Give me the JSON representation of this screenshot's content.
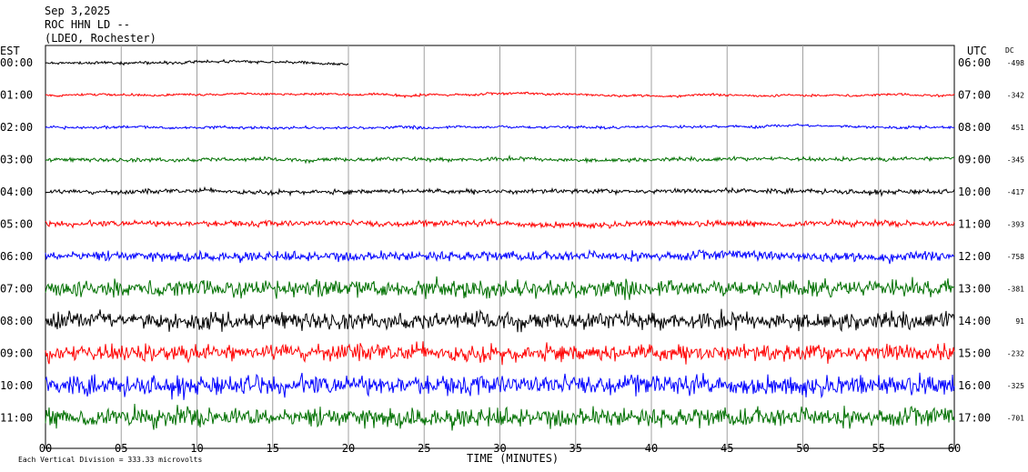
{
  "header": {
    "date": "Sep 3,2025",
    "station": "ROC HHN LD --",
    "location": "(LDEO, Rochester)"
  },
  "axis_labels": {
    "left_tz": "EST",
    "right_tz": "UTC",
    "dc": "DC",
    "xlabel": "TIME (MINUTES)",
    "scale_note": "Each Vertical Division = 333.33 microvolts"
  },
  "colors": {
    "black": "#000000",
    "red": "#ff0000",
    "blue": "#0000ff",
    "green": "#007000",
    "grid": "#a0a0a0"
  },
  "chart_data": {
    "type": "line",
    "xlim": [
      0,
      60
    ],
    "x_ticks": [
      "00",
      "05",
      "10",
      "15",
      "20",
      "25",
      "30",
      "35",
      "40",
      "45",
      "50",
      "55",
      "60"
    ],
    "rows": [
      {
        "est": "00:00",
        "utc": "06:00",
        "dc": "-498",
        "color": "black",
        "noise": 0.07,
        "end_minute": 20
      },
      {
        "est": "01:00",
        "utc": "07:00",
        "dc": "-342",
        "color": "red",
        "noise": 0.06,
        "end_minute": 60
      },
      {
        "est": "02:00",
        "utc": "08:00",
        "dc": "451",
        "color": "blue",
        "noise": 0.07,
        "end_minute": 60
      },
      {
        "est": "03:00",
        "utc": "09:00",
        "dc": "-345",
        "color": "green",
        "noise": 0.1,
        "end_minute": 60
      },
      {
        "est": "04:00",
        "utc": "10:00",
        "dc": "-417",
        "color": "black",
        "noise": 0.12,
        "end_minute": 60
      },
      {
        "est": "05:00",
        "utc": "11:00",
        "dc": "-393",
        "color": "red",
        "noise": 0.15,
        "end_minute": 60
      },
      {
        "est": "06:00",
        "utc": "12:00",
        "dc": "-758",
        "color": "blue",
        "noise": 0.25,
        "end_minute": 60
      },
      {
        "est": "07:00",
        "utc": "13:00",
        "dc": "-381",
        "color": "green",
        "noise": 0.45,
        "end_minute": 60
      },
      {
        "est": "08:00",
        "utc": "14:00",
        "dc": "91",
        "color": "black",
        "noise": 0.45,
        "end_minute": 60
      },
      {
        "est": "09:00",
        "utc": "15:00",
        "dc": "-232",
        "color": "red",
        "noise": 0.45,
        "end_minute": 60
      },
      {
        "est": "10:00",
        "utc": "16:00",
        "dc": "-325",
        "color": "blue",
        "noise": 0.5,
        "end_minute": 60
      },
      {
        "est": "11:00",
        "utc": "17:00",
        "dc": "-701",
        "color": "green",
        "noise": 0.5,
        "end_minute": 60
      }
    ]
  }
}
